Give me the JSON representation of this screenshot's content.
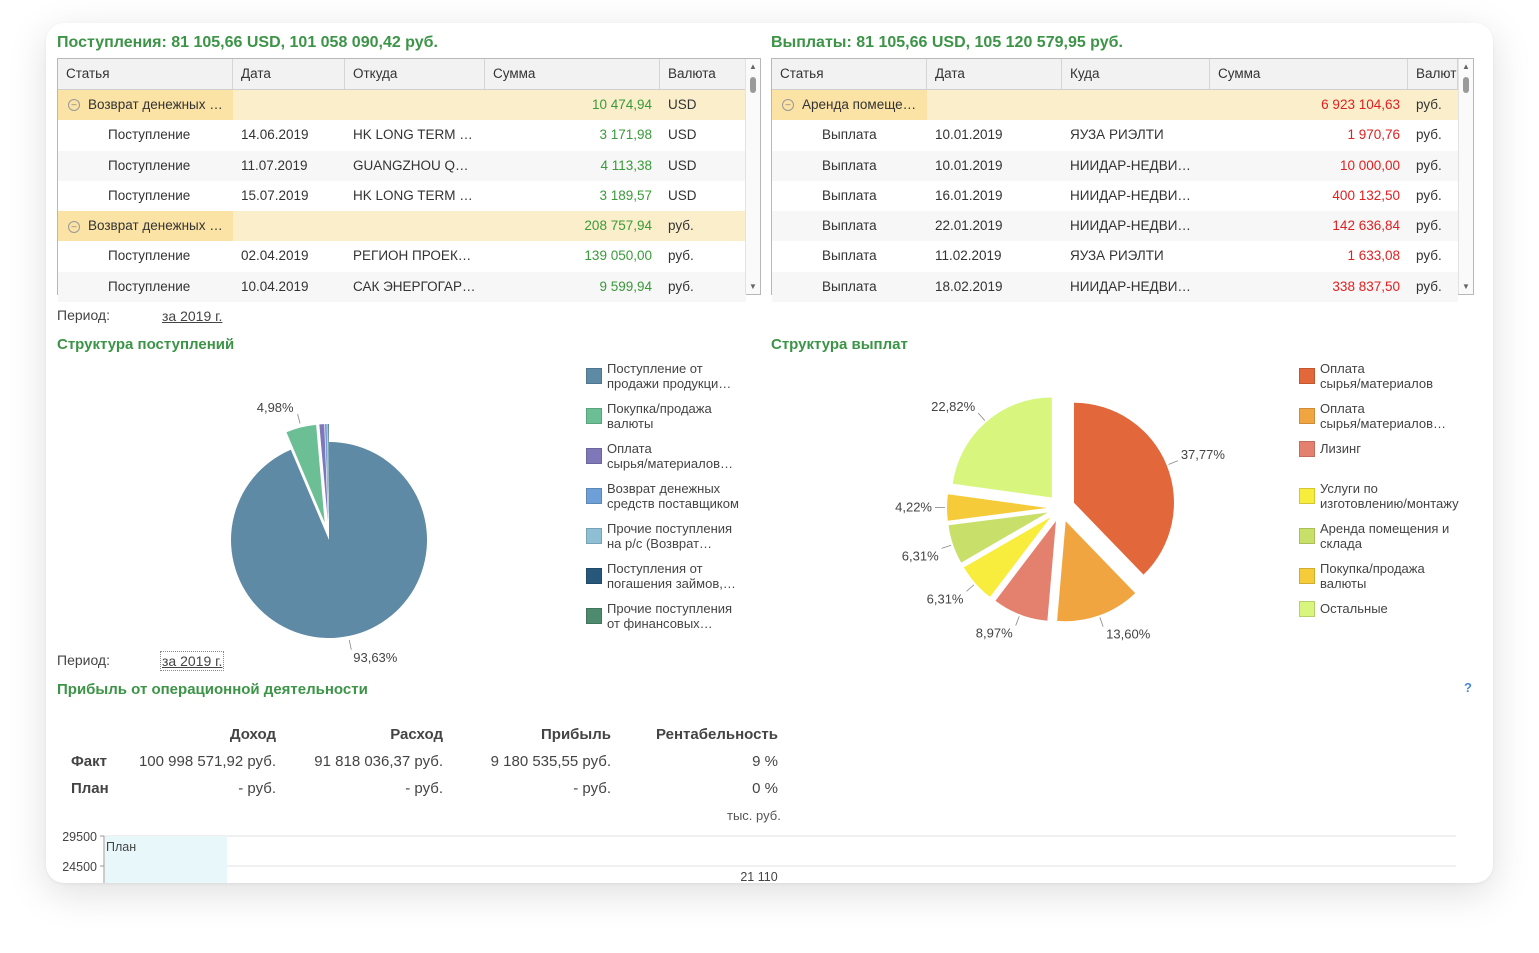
{
  "income": {
    "title": "Поступления:  81 105,66 USD,  101 058 090,42 руб.",
    "columns": [
      "Статья",
      "Дата",
      "Откуда",
      "Сумма",
      "Валюта"
    ],
    "rows": [
      {
        "group": true,
        "article": "Возврат денежных …",
        "date": "",
        "from": "",
        "sum": "10 474,94",
        "cur": "USD"
      },
      {
        "group": false,
        "article": "Поступление",
        "date": "14.06.2019",
        "from": "HK LONG TERM …",
        "sum": "3 171,98",
        "cur": "USD"
      },
      {
        "group": false,
        "article": "Поступление",
        "date": "11.07.2019",
        "from": "GUANGZHOU Q…",
        "sum": "4 113,38",
        "cur": "USD"
      },
      {
        "group": false,
        "article": "Поступление",
        "date": "15.07.2019",
        "from": "HK LONG TERM …",
        "sum": "3 189,57",
        "cur": "USD"
      },
      {
        "group": true,
        "article": "Возврат денежных …",
        "date": "",
        "from": "",
        "sum": "208 757,94",
        "cur": "руб."
      },
      {
        "group": false,
        "article": "Поступление",
        "date": "02.04.2019",
        "from": "РЕГИОН ПРОЕК…",
        "sum": "139 050,00",
        "cur": "руб."
      },
      {
        "group": false,
        "article": "Поступление",
        "date": "10.04.2019",
        "from": "САК ЭНЕРГОГАР…",
        "sum": "9 599,94",
        "cur": "руб."
      }
    ]
  },
  "payments": {
    "title": "Выплаты:  81 105,66 USD,  105 120 579,95 руб.",
    "columns": [
      "Статья",
      "Дата",
      "Куда",
      "Сумма",
      "Валют"
    ],
    "rows": [
      {
        "group": true,
        "article": "Аренда помеще…",
        "date": "",
        "to": "",
        "sum": "6 923 104,63",
        "cur": "руб."
      },
      {
        "group": false,
        "article": "Выплата",
        "date": "10.01.2019",
        "to": "ЯУЗА РИЭЛТИ",
        "sum": "1 970,76",
        "cur": "руб."
      },
      {
        "group": false,
        "article": "Выплата",
        "date": "10.01.2019",
        "to": "НИИДАР-НЕДВИ…",
        "sum": "10 000,00",
        "cur": "руб."
      },
      {
        "group": false,
        "article": "Выплата",
        "date": "16.01.2019",
        "to": "НИИДАР-НЕДВИ…",
        "sum": "400 132,50",
        "cur": "руб."
      },
      {
        "group": false,
        "article": "Выплата",
        "date": "22.01.2019",
        "to": "НИИДАР-НЕДВИ…",
        "sum": "142 636,84",
        "cur": "руб."
      },
      {
        "group": false,
        "article": "Выплата",
        "date": "11.02.2019",
        "to": "ЯУЗА РИЭЛТИ",
        "sum": "1 633,08",
        "cur": "руб."
      },
      {
        "group": false,
        "article": "Выплата",
        "date": "18.02.2019",
        "to": "НИИДАР-НЕДВИ…",
        "sum": "338 837,50",
        "cur": "руб."
      }
    ]
  },
  "period1": {
    "label": "Период:",
    "value": "за 2019 г."
  },
  "period2": {
    "label": "Период:",
    "value": "за 2019 г."
  },
  "income_structure": {
    "title": "Структура поступлений",
    "legend": [
      {
        "lines": [
          "Поступление от",
          "продажи продукци…"
        ],
        "color": "#5e8aa6"
      },
      {
        "lines": [
          "Покупка/продажа",
          "валюты"
        ],
        "color": "#6cbf95"
      },
      {
        "lines": [
          "Оплата",
          "сырья/материалов…"
        ],
        "color": "#7f78b8"
      },
      {
        "lines": [
          "Возврат денежных",
          "средств поставщиком"
        ],
        "color": "#6e9fd8"
      },
      {
        "lines": [
          "Прочие поступления",
          "на р/с (Возврат…"
        ],
        "color": "#8fbfd4"
      },
      {
        "lines": [
          "Поступления от",
          "погашения  займов,…"
        ],
        "color": "#27577a"
      },
      {
        "lines": [
          "Прочие поступления",
          "от финансовых…"
        ],
        "color": "#4e8a6e"
      }
    ]
  },
  "payments_structure": {
    "title": "Структура выплат",
    "legend": [
      {
        "lines": [
          "Оплата",
          "сырья/материалов"
        ],
        "color": "#e2673a"
      },
      {
        "lines": [
          "Оплата",
          "сырья/материалов…"
        ],
        "color": "#f1a540"
      },
      {
        "lines": [
          "Лизинг"
        ],
        "color": "#e4806e"
      },
      {
        "lines": [
          "Услуги по",
          "изготовлению/монтажу"
        ],
        "color": "#f8ec3c"
      },
      {
        "lines": [
          "Аренда помещения и",
          "склада"
        ],
        "color": "#c8e06a"
      },
      {
        "lines": [
          "Покупка/продажа",
          "валюты"
        ],
        "color": "#f5cb3a"
      },
      {
        "lines": [
          "Остальные"
        ],
        "color": "#d8f57e"
      }
    ]
  },
  "chart_data": [
    {
      "type": "pie",
      "title": "Структура поступлений",
      "slices": [
        {
          "name": "Поступление от продажи продукци…",
          "value": 93.63,
          "label": "93,63%",
          "color": "#5e8aa6",
          "exploded": false
        },
        {
          "name": "Покупка/продажа валюты",
          "value": 4.98,
          "label": "4,98%",
          "color": "#6cbf95",
          "exploded": true
        },
        {
          "name": "Оплата сырья/материалов…",
          "value": 0.8,
          "label": "",
          "color": "#7f78b8",
          "exploded": true
        },
        {
          "name": "Возврат денежных средств поставщиком",
          "value": 0.3,
          "label": "",
          "color": "#6e9fd8",
          "exploded": true
        },
        {
          "name": "Прочие поступления на р/с (Возврат…",
          "value": 0.15,
          "label": "",
          "color": "#8fbfd4",
          "exploded": true
        },
        {
          "name": "Поступления от погашения займов,…",
          "value": 0.1,
          "label": "",
          "color": "#27577a",
          "exploded": true
        },
        {
          "name": "Прочие поступления от финансовых…",
          "value": 0.04,
          "label": "",
          "color": "#4e8a6e",
          "exploded": true
        }
      ]
    },
    {
      "type": "pie",
      "title": "Структура выплат",
      "slices": [
        {
          "name": "Оплата сырья/материалов",
          "value": 37.77,
          "label": "37,77%",
          "color": "#e2673a"
        },
        {
          "name": "Оплата сырья/материалов…",
          "value": 13.6,
          "label": "13,60%",
          "color": "#f1a540"
        },
        {
          "name": "Лизинг",
          "value": 8.97,
          "label": "8,97%",
          "color": "#e4806e"
        },
        {
          "name": "Услуги по изготовлению/монтажу",
          "value": 6.31,
          "label": "6,31%",
          "color": "#f8ec3c"
        },
        {
          "name": "Аренда помещения и склада",
          "value": 6.31,
          "label": "6,31%",
          "color": "#c8e06a"
        },
        {
          "name": "Покупка/продажа валюты",
          "value": 4.22,
          "label": "4,22%",
          "color": "#f5cb3a"
        },
        {
          "name": "Остальные",
          "value": 22.82,
          "label": "22,82%",
          "color": "#d8f57e"
        }
      ]
    },
    {
      "type": "bar",
      "title": "",
      "unit_label": "тыс. руб.",
      "y_ticks": [
        "29500",
        "24500"
      ],
      "series": [
        {
          "name": "План"
        }
      ],
      "value_labels": [
        "21 110"
      ]
    }
  ],
  "profit": {
    "title": "Прибыль от операционной деятельности",
    "help": "?",
    "headers": [
      "Доход",
      "Расход",
      "Прибыль",
      "Рентабельность"
    ],
    "rows": [
      {
        "label": "Факт",
        "income": "100 998 571,92 руб.",
        "expense": "91 818 036,37 руб.",
        "profit": "9 180 535,55 руб.",
        "margin": "9 %"
      },
      {
        "label": "План",
        "income": "- руб.",
        "expense": "- руб.",
        "profit": "- руб.",
        "margin": "0 %"
      }
    ],
    "unit": "тыс. руб."
  }
}
